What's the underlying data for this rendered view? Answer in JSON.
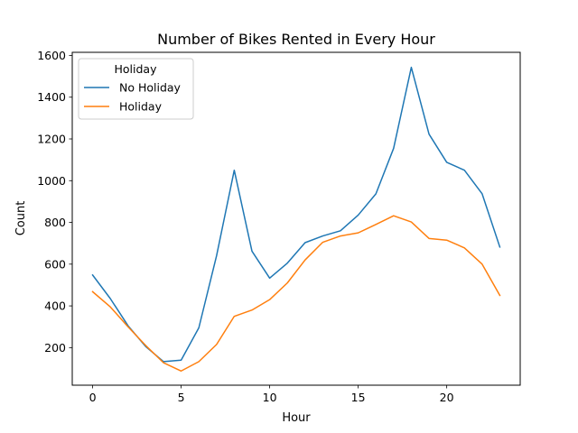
{
  "chart_data": {
    "type": "line",
    "title": "Number of Bikes Rented in Every Hour",
    "xlabel": "Hour",
    "ylabel": "Count",
    "xlim": [
      -1.15,
      24.15
    ],
    "ylim": [
      20,
      1615
    ],
    "xticks": [
      0,
      5,
      10,
      15,
      20
    ],
    "yticks": [
      200,
      400,
      600,
      800,
      1000,
      1200,
      1400,
      1600
    ],
    "grid": false,
    "legend": {
      "title": "Holiday",
      "position": "upper-left"
    },
    "x": [
      0,
      1,
      2,
      3,
      4,
      5,
      6,
      7,
      8,
      9,
      10,
      11,
      12,
      13,
      14,
      15,
      16,
      17,
      18,
      19,
      20,
      21,
      22,
      23
    ],
    "series": [
      {
        "name": "No Holiday",
        "color": "#1f77b4",
        "values": [
          548,
          435,
          305,
          205,
          133,
          140,
          295,
          640,
          1050,
          662,
          533,
          605,
          703,
          735,
          760,
          835,
          937,
          1155,
          1543,
          1223,
          1088,
          1050,
          937,
          682
        ]
      },
      {
        "name": "Holiday",
        "color": "#ff7f0e",
        "values": [
          468,
          395,
          300,
          210,
          128,
          88,
          133,
          215,
          350,
          380,
          430,
          510,
          620,
          705,
          735,
          750,
          790,
          832,
          802,
          723,
          715,
          678,
          600,
          450
        ]
      }
    ]
  }
}
